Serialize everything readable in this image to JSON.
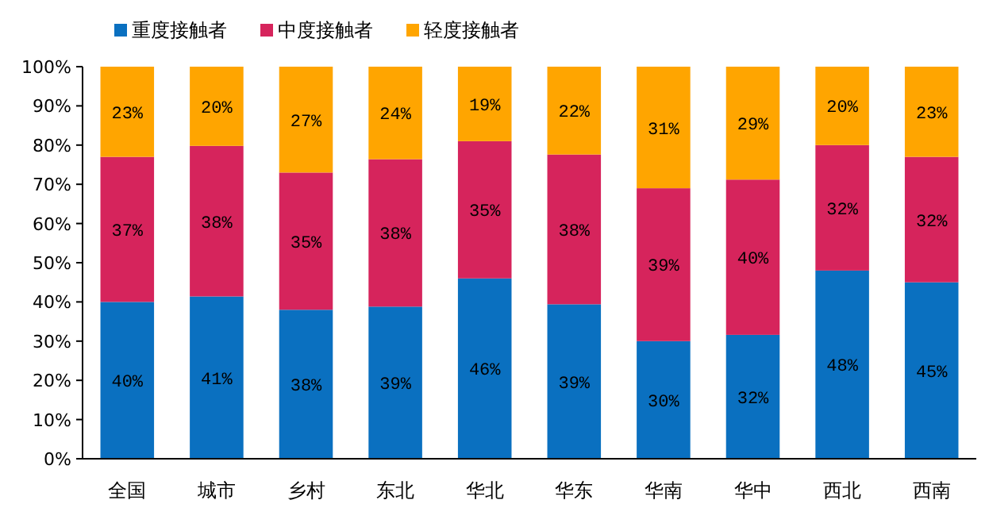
{
  "chart_data": {
    "type": "bar",
    "stacked": true,
    "legend": "top left",
    "data_labels": false,
    "categories": [
      "全国",
      "城市",
      "乡村",
      "东北",
      "华北",
      "华东",
      "华南",
      "华中",
      "西北",
      "西南"
    ],
    "series": [
      {
        "name": "重度接触者",
        "color": "#0a70c0",
        "values": [
          40,
          41.4,
          38,
          38.8,
          46,
          39.4,
          30,
          31.6,
          48,
          45
        ],
        "value_labels": [
          "40%",
          "41%",
          "38%",
          "39%",
          "46%",
          "39%",
          "30%",
          "32%",
          "48%",
          "45%"
        ]
      },
      {
        "name": "中度接触者",
        "color": "#d6245c",
        "values": [
          37,
          38.4,
          35,
          37.6,
          35,
          38.2,
          39,
          39.6,
          32,
          32
        ],
        "value_labels": [
          "37%",
          "38%",
          "35%",
          "38%",
          "35%",
          "38%",
          "39%",
          "40%",
          "32%",
          "32%"
        ]
      },
      {
        "name": "轻度接触者",
        "color": "#ffa500",
        "values": [
          23,
          20.2,
          27,
          23.6,
          19,
          22.4,
          31,
          28.8,
          20,
          23
        ],
        "value_labels": [
          "23%",
          "20%",
          "27%",
          "24%",
          "19%",
          "22%",
          "31%",
          "29%",
          "20%",
          "23%"
        ]
      }
    ],
    "ylim": [
      0,
      100
    ],
    "yticks": [
      {
        "value": 0,
        "label": "0%"
      },
      {
        "value": 10,
        "label": "10%"
      },
      {
        "value": 20,
        "label": "20%"
      },
      {
        "value": 30,
        "label": "30%"
      },
      {
        "value": 40,
        "label": "40%"
      },
      {
        "value": 50,
        "label": "50%"
      },
      {
        "value": 60,
        "label": "60%"
      },
      {
        "value": 70,
        "label": "70%"
      },
      {
        "value": 80,
        "label": "80%"
      },
      {
        "value": 90,
        "label": "90%"
      },
      {
        "value": 100,
        "label": "100%"
      }
    ]
  }
}
